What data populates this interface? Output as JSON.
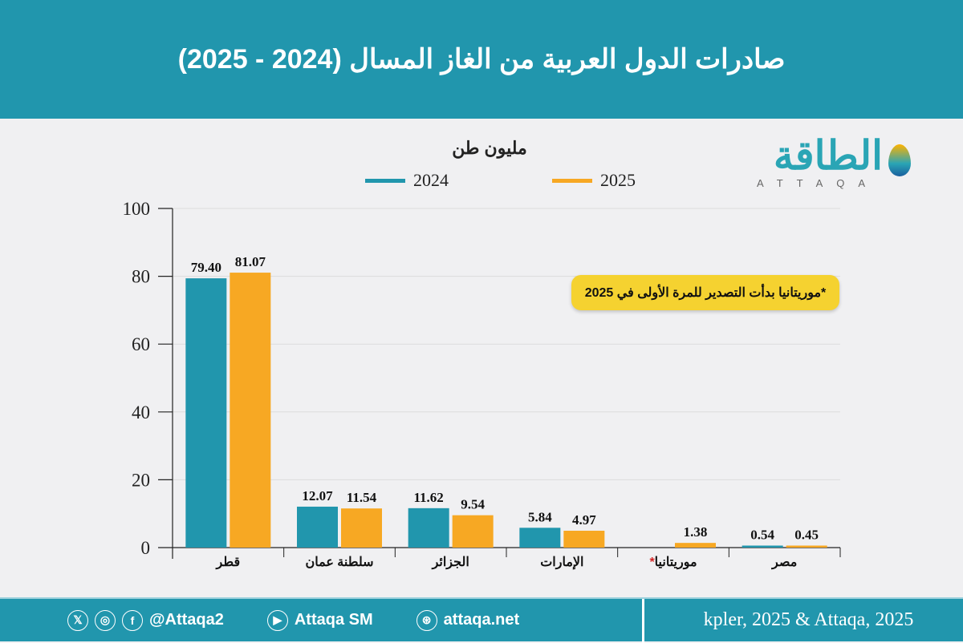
{
  "header": {
    "title": "صادرات الدول العربية من الغاز المسال (2024 - 2025)"
  },
  "logo": {
    "arabic": "الطاقة",
    "latin": "ATTAQA"
  },
  "note": "*موريتانيا بدأت التصدير للمرة الأولى في 2025",
  "chart_data": {
    "type": "bar",
    "ylabel": "مليون طن",
    "ylim": [
      0,
      100
    ],
    "yticks": [
      "0",
      "20",
      "40",
      "60",
      "80",
      "100"
    ],
    "grid": true,
    "legend_position": "top",
    "categories": [
      "قطر",
      "سلطنة عمان",
      "الجزائر",
      "الإمارات",
      "موريتانيا",
      "مصر"
    ],
    "category_marks": [
      "",
      "",
      "",
      "",
      "*",
      ""
    ],
    "series": [
      {
        "name": "2024",
        "color": "#2196ad",
        "values": [
          79.4,
          12.07,
          11.62,
          5.84,
          null,
          0.54
        ],
        "labels": [
          "79.40",
          "12.07",
          "11.62",
          "5.84",
          "",
          "0.54"
        ]
      },
      {
        "name": "2025",
        "color": "#f7a823",
        "values": [
          81.07,
          11.54,
          9.54,
          4.97,
          1.38,
          0.45
        ],
        "labels": [
          "81.07",
          "11.54",
          "9.54",
          "4.97",
          "1.38",
          "0.45"
        ]
      }
    ]
  },
  "footer": {
    "icons": [
      "x-icon",
      "instagram-icon",
      "facebook-icon",
      "youtube-icon",
      "dribbble-globe-icon"
    ],
    "handle": "@Attaqa2",
    "youtube": "Attaqa SM",
    "site": "attaqa.net",
    "source": "kpler, 2025 & Attaqa, 2025"
  }
}
